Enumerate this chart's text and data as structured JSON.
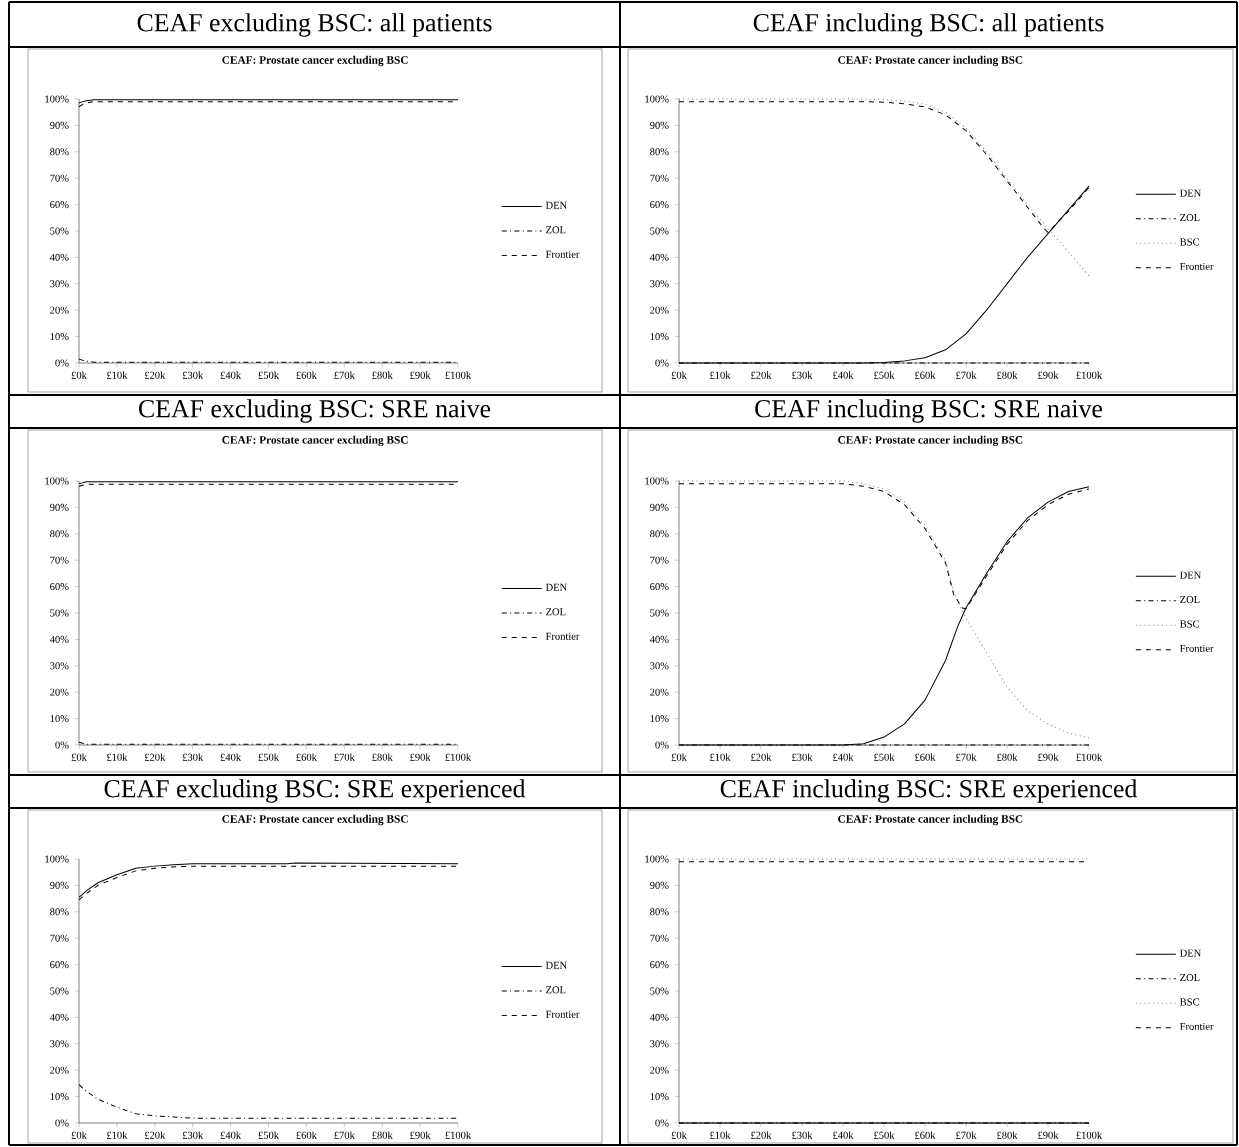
{
  "chart_data": [
    {
      "type": "line",
      "title": "CEAF excluding BSC: all patients",
      "subtitle": "CEAF: Prostate cancer excluding BSC",
      "xlim": [
        0,
        100
      ],
      "ylim": [
        0,
        100
      ],
      "legend": "right",
      "grid": false,
      "xticks": [
        {
          "value": 0,
          "label": "£0k"
        },
        {
          "value": 10,
          "label": "£10k"
        },
        {
          "value": 20,
          "label": "£20k"
        },
        {
          "value": 30,
          "label": "£30k"
        },
        {
          "value": 40,
          "label": "£40k"
        },
        {
          "value": 50,
          "label": "£50k"
        },
        {
          "value": 60,
          "label": "£60k"
        },
        {
          "value": 70,
          "label": "£70k"
        },
        {
          "value": 80,
          "label": "£80k"
        },
        {
          "value": 90,
          "label": "£90k"
        },
        {
          "value": 100,
          "label": "£100k"
        }
      ],
      "yticks": [
        {
          "value": 0,
          "label": "0%"
        },
        {
          "value": 10,
          "label": "10%"
        },
        {
          "value": 20,
          "label": "20%"
        },
        {
          "value": 30,
          "label": "30%"
        },
        {
          "value": 40,
          "label": "40%"
        },
        {
          "value": 50,
          "label": "50%"
        },
        {
          "value": 60,
          "label": "60%"
        },
        {
          "value": 70,
          "label": "70%"
        },
        {
          "value": 80,
          "label": "80%"
        },
        {
          "value": 90,
          "label": "90%"
        },
        {
          "value": 100,
          "label": "100%"
        }
      ],
      "series": [
        {
          "name": "DEN",
          "color": "#000000",
          "line_style": "solid",
          "x": [
            0,
            1,
            2,
            4,
            100
          ],
          "values": [
            98.5,
            99,
            99.3,
            99.7,
            99.7
          ]
        },
        {
          "name": "ZOL",
          "color": "#000000",
          "line_style": "dashdot",
          "x": [
            0,
            1,
            2,
            4,
            100
          ],
          "values": [
            1.5,
            1,
            0.7,
            0.3,
            0.3
          ]
        },
        {
          "name": "Frontier",
          "color": "#000000",
          "line_style": "dashed",
          "x": [
            0,
            1,
            2,
            4,
            100
          ],
          "values": [
            97,
            98,
            98.5,
            99,
            99
          ]
        }
      ]
    },
    {
      "type": "line",
      "title": "CEAF including BSC: all patients",
      "subtitle": "CEAF: Prostate cancer including BSC",
      "xlim": [
        0,
        100
      ],
      "ylim": [
        0,
        100
      ],
      "legend": "right",
      "grid": false,
      "xticks": [
        {
          "value": 0,
          "label": "£0k"
        },
        {
          "value": 10,
          "label": "£10k"
        },
        {
          "value": 20,
          "label": "£20k"
        },
        {
          "value": 30,
          "label": "£30k"
        },
        {
          "value": 40,
          "label": "£40k"
        },
        {
          "value": 50,
          "label": "£50k"
        },
        {
          "value": 60,
          "label": "£60k"
        },
        {
          "value": 70,
          "label": "£70k"
        },
        {
          "value": 80,
          "label": "£80k"
        },
        {
          "value": 90,
          "label": "£90k"
        },
        {
          "value": 100,
          "label": "£100k"
        }
      ],
      "yticks": [
        {
          "value": 0,
          "label": "0%"
        },
        {
          "value": 10,
          "label": "10%"
        },
        {
          "value": 20,
          "label": "20%"
        },
        {
          "value": 30,
          "label": "30%"
        },
        {
          "value": 40,
          "label": "40%"
        },
        {
          "value": 50,
          "label": "50%"
        },
        {
          "value": 60,
          "label": "60%"
        },
        {
          "value": 70,
          "label": "70%"
        },
        {
          "value": 80,
          "label": "80%"
        },
        {
          "value": 90,
          "label": "90%"
        },
        {
          "value": 100,
          "label": "100%"
        }
      ],
      "series": [
        {
          "name": "DEN",
          "color": "#000000",
          "line_style": "solid",
          "x": [
            0,
            45,
            50,
            55,
            60,
            65,
            70,
            75,
            80,
            85,
            90,
            95,
            100
          ],
          "values": [
            0,
            0,
            0.2,
            0.8,
            2,
            5,
            11,
            20,
            30,
            40,
            49,
            58,
            67
          ]
        },
        {
          "name": "ZOL",
          "color": "#000000",
          "line_style": "dashdot",
          "x": [
            0,
            100
          ],
          "values": [
            0,
            0
          ]
        },
        {
          "name": "BSC",
          "color": "#808080",
          "line_style": "dotted",
          "x": [
            0,
            45,
            50,
            55,
            60,
            65,
            70,
            75,
            80,
            85,
            90,
            95,
            100
          ],
          "values": [
            100,
            100,
            99.8,
            99.2,
            98,
            95,
            89,
            80,
            70,
            60,
            51,
            42,
            33
          ]
        },
        {
          "name": "Frontier",
          "color": "#000000",
          "line_style": "dashed",
          "x": [
            0,
            45,
            50,
            55,
            60,
            65,
            70,
            75,
            80,
            85,
            89,
            90,
            95,
            100
          ],
          "values": [
            99,
            99,
            98.8,
            98.2,
            97,
            94,
            88,
            79,
            69,
            59,
            51,
            49.5,
            57.5,
            66.5
          ]
        }
      ]
    },
    {
      "type": "line",
      "title": "CEAF excluding BSC: SRE naive",
      "subtitle": "CEAF: Prostate cancer excluding BSC",
      "xlim": [
        0,
        100
      ],
      "ylim": [
        0,
        100
      ],
      "legend": "right",
      "grid": false,
      "xticks": [
        {
          "value": 0,
          "label": "£0k"
        },
        {
          "value": 10,
          "label": "£10k"
        },
        {
          "value": 20,
          "label": "£20k"
        },
        {
          "value": 30,
          "label": "£30k"
        },
        {
          "value": 40,
          "label": "£40k"
        },
        {
          "value": 50,
          "label": "£50k"
        },
        {
          "value": 60,
          "label": "£60k"
        },
        {
          "value": 70,
          "label": "£70k"
        },
        {
          "value": 80,
          "label": "£80k"
        },
        {
          "value": 90,
          "label": "£90k"
        },
        {
          "value": 100,
          "label": "£100k"
        }
      ],
      "yticks": [
        {
          "value": 0,
          "label": "0%"
        },
        {
          "value": 10,
          "label": "10%"
        },
        {
          "value": 20,
          "label": "20%"
        },
        {
          "value": 30,
          "label": "30%"
        },
        {
          "value": 40,
          "label": "40%"
        },
        {
          "value": 50,
          "label": "50%"
        },
        {
          "value": 60,
          "label": "60%"
        },
        {
          "value": 70,
          "label": "70%"
        },
        {
          "value": 80,
          "label": "80%"
        },
        {
          "value": 90,
          "label": "90%"
        },
        {
          "value": 100,
          "label": "100%"
        }
      ],
      "series": [
        {
          "name": "DEN",
          "color": "#000000",
          "line_style": "solid",
          "x": [
            0,
            2,
            100
          ],
          "values": [
            99,
            99.7,
            99.7
          ]
        },
        {
          "name": "ZOL",
          "color": "#000000",
          "line_style": "dashdot",
          "x": [
            0,
            2,
            100
          ],
          "values": [
            1,
            0.3,
            0.3
          ]
        },
        {
          "name": "Frontier",
          "color": "#000000",
          "line_style": "dashed",
          "x": [
            0,
            2,
            100
          ],
          "values": [
            98,
            98.8,
            98.8
          ]
        }
      ]
    },
    {
      "type": "line",
      "title": "CEAF including BSC: SRE naive",
      "subtitle": "CEAF: Prostate cancer including BSC",
      "xlim": [
        0,
        100
      ],
      "ylim": [
        0,
        100
      ],
      "legend": "right",
      "grid": false,
      "xticks": [
        {
          "value": 0,
          "label": "£0k"
        },
        {
          "value": 10,
          "label": "£10k"
        },
        {
          "value": 20,
          "label": "£20k"
        },
        {
          "value": 30,
          "label": "£30k"
        },
        {
          "value": 40,
          "label": "£40k"
        },
        {
          "value": 50,
          "label": "£50k"
        },
        {
          "value": 60,
          "label": "£60k"
        },
        {
          "value": 70,
          "label": "£70k"
        },
        {
          "value": 80,
          "label": "£80k"
        },
        {
          "value": 90,
          "label": "£90k"
        },
        {
          "value": 100,
          "label": "£100k"
        }
      ],
      "yticks": [
        {
          "value": 0,
          "label": "0%"
        },
        {
          "value": 10,
          "label": "10%"
        },
        {
          "value": 20,
          "label": "20%"
        },
        {
          "value": 30,
          "label": "30%"
        },
        {
          "value": 40,
          "label": "40%"
        },
        {
          "value": 50,
          "label": "50%"
        },
        {
          "value": 60,
          "label": "60%"
        },
        {
          "value": 70,
          "label": "70%"
        },
        {
          "value": 80,
          "label": "80%"
        },
        {
          "value": 90,
          "label": "90%"
        },
        {
          "value": 100,
          "label": "100%"
        }
      ],
      "series": [
        {
          "name": "DEN",
          "color": "#000000",
          "line_style": "solid",
          "x": [
            0,
            40,
            45,
            50,
            55,
            60,
            65,
            68,
            70,
            75,
            80,
            85,
            90,
            95,
            100
          ],
          "values": [
            0,
            0,
            0.5,
            3,
            8,
            17,
            32,
            45,
            52,
            65,
            77,
            86,
            92,
            96,
            97.8
          ]
        },
        {
          "name": "ZOL",
          "color": "#000000",
          "line_style": "dashdot",
          "x": [
            0,
            100
          ],
          "values": [
            0,
            0
          ]
        },
        {
          "name": "BSC",
          "color": "#808080",
          "line_style": "dotted",
          "x": [
            0,
            40,
            45,
            50,
            55,
            60,
            65,
            67,
            70,
            75,
            80,
            85,
            90,
            95,
            100
          ],
          "values": [
            100,
            100,
            99,
            97,
            92,
            83,
            70,
            58,
            48,
            35,
            22,
            13,
            8,
            4.5,
            2.7
          ]
        },
        {
          "name": "Frontier",
          "color": "#000000",
          "line_style": "dashed",
          "x": [
            0,
            40,
            45,
            50,
            55,
            60,
            65,
            67,
            69,
            70,
            75,
            80,
            85,
            90,
            95,
            100
          ],
          "values": [
            99,
            99,
            98,
            96,
            91,
            82,
            69,
            57,
            52,
            51.5,
            64,
            76,
            85,
            91,
            95,
            97
          ]
        }
      ]
    },
    {
      "type": "line",
      "title": "CEAF excluding BSC: SRE experienced",
      "subtitle": "CEAF: Prostate cancer excluding BSC",
      "xlim": [
        0,
        100
      ],
      "ylim": [
        0,
        100
      ],
      "legend": "right",
      "grid": false,
      "xticks": [
        {
          "value": 0,
          "label": "£0k"
        },
        {
          "value": 10,
          "label": "£10k"
        },
        {
          "value": 20,
          "label": "£20k"
        },
        {
          "value": 30,
          "label": "£30k"
        },
        {
          "value": 40,
          "label": "£40k"
        },
        {
          "value": 50,
          "label": "£50k"
        },
        {
          "value": 60,
          "label": "£60k"
        },
        {
          "value": 70,
          "label": "£70k"
        },
        {
          "value": 80,
          "label": "£80k"
        },
        {
          "value": 90,
          "label": "£90k"
        },
        {
          "value": 100,
          "label": "£100k"
        }
      ],
      "yticks": [
        {
          "value": 0,
          "label": "0%"
        },
        {
          "value": 10,
          "label": "10%"
        },
        {
          "value": 20,
          "label": "20%"
        },
        {
          "value": 30,
          "label": "30%"
        },
        {
          "value": 40,
          "label": "40%"
        },
        {
          "value": 50,
          "label": "50%"
        },
        {
          "value": 60,
          "label": "60%"
        },
        {
          "value": 70,
          "label": "70%"
        },
        {
          "value": 80,
          "label": "80%"
        },
        {
          "value": 90,
          "label": "90%"
        },
        {
          "value": 100,
          "label": "100%"
        }
      ],
      "series": [
        {
          "name": "DEN",
          "color": "#000000",
          "line_style": "solid",
          "x": [
            0,
            2,
            5,
            10,
            15,
            20,
            25,
            30,
            55,
            57,
            100
          ],
          "values": [
            85.5,
            88,
            91,
            94,
            96.5,
            97.3,
            97.8,
            98.2,
            98.2,
            98.5,
            98.2
          ]
        },
        {
          "name": "ZOL",
          "color": "#000000",
          "line_style": "dashdot",
          "x": [
            0,
            2,
            5,
            10,
            15,
            20,
            25,
            30,
            100
          ],
          "values": [
            14.5,
            12,
            9,
            6,
            3.5,
            2.7,
            2.3,
            1.8,
            1.8
          ]
        },
        {
          "name": "Frontier",
          "color": "#000000",
          "line_style": "dashed",
          "x": [
            0,
            2,
            5,
            10,
            15,
            20,
            25,
            30,
            100
          ],
          "values": [
            84.5,
            87,
            90,
            93,
            95.5,
            96.5,
            97,
            97.3,
            97.3
          ]
        }
      ]
    },
    {
      "type": "line",
      "title": "CEAF including BSC: SRE experienced",
      "subtitle": "CEAF: Prostate cancer including BSC",
      "xlim": [
        0,
        100
      ],
      "ylim": [
        0,
        100
      ],
      "legend": "right",
      "grid": false,
      "xticks": [
        {
          "value": 0,
          "label": "£0k"
        },
        {
          "value": 10,
          "label": "£10k"
        },
        {
          "value": 20,
          "label": "£20k"
        },
        {
          "value": 30,
          "label": "£30k"
        },
        {
          "value": 40,
          "label": "£40k"
        },
        {
          "value": 50,
          "label": "£50k"
        },
        {
          "value": 60,
          "label": "£60k"
        },
        {
          "value": 70,
          "label": "£70k"
        },
        {
          "value": 80,
          "label": "£80k"
        },
        {
          "value": 90,
          "label": "£90k"
        },
        {
          "value": 100,
          "label": "£100k"
        }
      ],
      "yticks": [
        {
          "value": 0,
          "label": "0%"
        },
        {
          "value": 10,
          "label": "10%"
        },
        {
          "value": 20,
          "label": "20%"
        },
        {
          "value": 30,
          "label": "30%"
        },
        {
          "value": 40,
          "label": "40%"
        },
        {
          "value": 50,
          "label": "50%"
        },
        {
          "value": 60,
          "label": "60%"
        },
        {
          "value": 70,
          "label": "70%"
        },
        {
          "value": 80,
          "label": "80%"
        },
        {
          "value": 90,
          "label": "90%"
        },
        {
          "value": 100,
          "label": "100%"
        }
      ],
      "series": [
        {
          "name": "DEN",
          "color": "#000000",
          "line_style": "solid",
          "x": [
            0,
            100
          ],
          "values": [
            0,
            0
          ]
        },
        {
          "name": "ZOL",
          "color": "#000000",
          "line_style": "dashdot",
          "x": [
            0,
            100
          ],
          "values": [
            0,
            0
          ]
        },
        {
          "name": "BSC",
          "color": "#808080",
          "line_style": "dotted",
          "x": [
            0,
            100
          ],
          "values": [
            100,
            100
          ]
        },
        {
          "name": "Frontier",
          "color": "#000000",
          "line_style": "dashed",
          "x": [
            0,
            100
          ],
          "values": [
            99,
            99
          ]
        }
      ]
    }
  ]
}
